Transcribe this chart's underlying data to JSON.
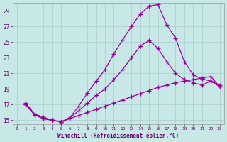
{
  "background_color": "#c8e8e8",
  "grid_color": "#aacccc",
  "line_color": "#990099",
  "xlabel": "Windchill (Refroidissement éolien,°C)",
  "xlabel_color": "#660066",
  "tick_color": "#660066",
  "xlim": [
    -0.5,
    23.5
  ],
  "ylim": [
    14.5,
    30.0
  ],
  "yticks": [
    15,
    17,
    19,
    21,
    23,
    25,
    27,
    29
  ],
  "xticks": [
    0,
    1,
    2,
    3,
    4,
    5,
    6,
    7,
    8,
    9,
    10,
    11,
    12,
    13,
    14,
    15,
    16,
    17,
    18,
    19,
    20,
    21,
    22,
    23
  ],
  "curve1_x": [
    1,
    2,
    3,
    4,
    5,
    6,
    7,
    8,
    9,
    10,
    11,
    12,
    13,
    14,
    15,
    16,
    17,
    18,
    19,
    20,
    21,
    22,
    23
  ],
  "curve1_y": [
    17.2,
    15.8,
    15.4,
    15.0,
    14.8,
    15.2,
    15.6,
    16.0,
    16.4,
    16.8,
    17.2,
    17.6,
    18.0,
    18.4,
    18.8,
    19.2,
    19.5,
    19.8,
    20.0,
    20.2,
    20.4,
    20.6,
    19.3
  ],
  "curve2_x": [
    1,
    2,
    3,
    4,
    5,
    6,
    7,
    8,
    9,
    10,
    11,
    12,
    13,
    14,
    15,
    16,
    17,
    18,
    19,
    20,
    21,
    22,
    23
  ],
  "curve2_y": [
    17.0,
    15.7,
    15.2,
    15.0,
    14.8,
    15.3,
    16.8,
    18.5,
    20.0,
    21.5,
    23.5,
    25.3,
    27.0,
    28.6,
    29.6,
    29.8,
    27.2,
    25.5,
    22.5,
    20.8,
    20.3,
    20.0,
    19.5
  ],
  "curve3_x": [
    1,
    2,
    3,
    4,
    5,
    6,
    7,
    8,
    9,
    10,
    11,
    12,
    13,
    14,
    15,
    16,
    17,
    18,
    19,
    20,
    21,
    22,
    23
  ],
  "curve3_y": [
    17.0,
    15.7,
    15.2,
    15.0,
    14.8,
    15.3,
    16.2,
    17.2,
    18.2,
    19.0,
    20.2,
    21.5,
    23.0,
    24.5,
    25.2,
    24.2,
    22.5,
    21.0,
    20.2,
    19.8,
    19.5,
    20.0,
    19.3
  ],
  "marker": "+",
  "markersize": 4,
  "linewidth": 0.9
}
